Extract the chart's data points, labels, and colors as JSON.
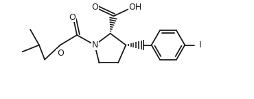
{
  "background_color": "#ffffff",
  "line_color": "#1a1a1a",
  "line_width": 1.3,
  "font_size": 9.0,
  "figsize": [
    3.7,
    1.44
  ],
  "dpi": 100,
  "xlim": [
    -0.5,
    10.5
  ],
  "ylim": [
    -0.2,
    4.2
  ]
}
